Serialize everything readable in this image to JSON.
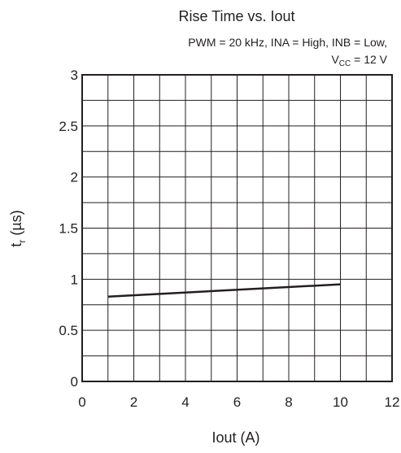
{
  "chart_data": {
    "type": "line",
    "title": "Rise Time vs. Iout",
    "subtitle_line1": "PWM = 20 kHz, INA = High, INB = Low,",
    "subtitle_line2_main": "V",
    "subtitle_line2_sub": "CC",
    "subtitle_line2_rest": " = 12 V",
    "xlabel": "Iout  (A)",
    "ylabel_main": "t",
    "ylabel_sub": "r",
    "ylabel_unit": "  (µs)",
    "xlim": [
      0,
      12
    ],
    "ylim": [
      0,
      3
    ],
    "x_ticks": [
      0,
      2,
      4,
      6,
      8,
      10,
      12
    ],
    "x_tick_labels": [
      "0",
      "2",
      "4",
      "6",
      "8",
      "10",
      "12"
    ],
    "y_ticks": [
      0,
      0.5,
      1,
      1.5,
      2,
      2.5,
      3
    ],
    "y_tick_labels": [
      "0",
      "0.5",
      "1",
      "1.5",
      "2",
      "2.5",
      "3"
    ],
    "grid": true,
    "x_grid_step": 1,
    "y_grid_step": 0.25,
    "series": [
      {
        "x": [
          1,
          10
        ],
        "y": [
          0.83,
          0.95
        ],
        "color": "#231f20"
      }
    ]
  }
}
